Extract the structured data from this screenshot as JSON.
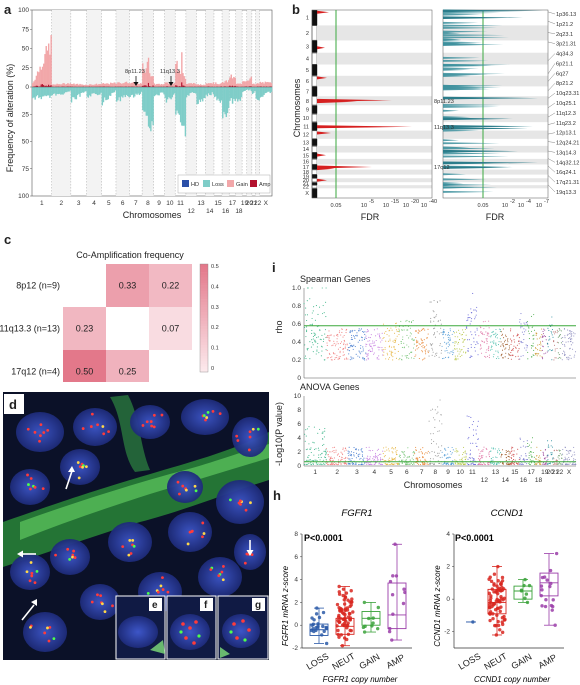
{
  "panel_a": {
    "letter": "a",
    "ylabel": "Frequency of alteration (%)",
    "xlabel": "Chromosomes",
    "yticks": [
      "100",
      "75",
      "50",
      "25",
      "0",
      "25",
      "50",
      "75",
      "100"
    ],
    "chromosomes": [
      "1",
      "2",
      "3",
      "4",
      "5",
      "6",
      "7",
      "8",
      "9",
      "10",
      "11",
      "12",
      "13",
      "14",
      "15",
      "16",
      "17",
      "18",
      "19",
      "20",
      "21",
      "22",
      "X"
    ],
    "annotations": [
      "8p11.23",
      "11q13.3"
    ],
    "legend": [
      {
        "label": "HD",
        "color": "#2b4fa8"
      },
      {
        "label": "Loss",
        "color": "#7fcdc8"
      },
      {
        "label": "Gain",
        "color": "#f2a7a9"
      },
      {
        "label": "Amp",
        "color": "#b3122e"
      }
    ]
  },
  "panel_b": {
    "letter": "b",
    "ylabel": "Chromosomes",
    "xlabel_left": "FDR",
    "xlabel_right": "FDR",
    "chromosomes": [
      "1",
      "2",
      "3",
      "4",
      "5",
      "6",
      "7",
      "8",
      "9",
      "10",
      "11",
      "12",
      "13",
      "14",
      "15",
      "16",
      "17",
      "18",
      "19",
      "20",
      "21",
      "22",
      "X"
    ],
    "xticks_left": [
      "0.05",
      "10",
      "-5",
      "10",
      "-15",
      "10",
      "-20",
      "10",
      "-40"
    ],
    "xticks_right": [
      "0.05",
      "10",
      "-2",
      "10",
      "-4",
      "10",
      "-7"
    ],
    "left_labels": [
      "8p11.23",
      "11q13.3",
      "17q12"
    ],
    "right_labels": [
      "1p36.13",
      "1p21.2",
      "2q23.1",
      "3p21.31",
      "4q34.3",
      "6p21.1",
      "6q27",
      "8p21.2",
      "10q23.31",
      "10q25.1",
      "11q12.3",
      "11q23.2",
      "12p13.1",
      "12q24.21",
      "13q14.3",
      "14q32.12",
      "16q24.1",
      "17q21.31",
      "19q13.3"
    ]
  },
  "panel_c": {
    "letter": "c",
    "title": "Co-Amplification frequency",
    "rows": [
      "8p12 (n=9)",
      "11q13.3 (n=13)",
      "17q12 (n=4)"
    ],
    "cols": [
      "8p12",
      "11q13.3",
      "17q12"
    ],
    "values": [
      [
        "",
        "0.33",
        "0.22"
      ],
      [
        "0.23",
        "",
        "0.07"
      ],
      [
        "0.50",
        "0.25",
        ""
      ]
    ],
    "scale_ticks": [
      "0.5",
      "0.4",
      "0.3",
      "0.2",
      "0.1",
      "0"
    ]
  },
  "panel_d": {
    "letter": "d",
    "insets": [
      "e",
      "f",
      "g"
    ]
  },
  "panel_i": {
    "letter": "i",
    "top_title": "Spearman Genes",
    "top_ylabel": "rho",
    "top_yticks": [
      "1.0",
      "0.8",
      "0.6",
      "0.4",
      "0.2",
      "0"
    ],
    "bottom_title": "ANOVA Genes",
    "bottom_ylabel": "-Log10(P value)",
    "bottom_yticks": [
      "10",
      "8",
      "6",
      "4",
      "2",
      "0"
    ],
    "xlabel": "Chromosomes",
    "chromosomes": [
      "1",
      "2",
      "3",
      "4",
      "5",
      "6",
      "7",
      "8",
      "9",
      "10",
      "11",
      "12",
      "13",
      "14",
      "15",
      "16",
      "17",
      "18",
      "19",
      "20",
      "21",
      "22",
      "X"
    ]
  },
  "panel_h": {
    "letter": "h",
    "left": {
      "title": "FGFR1",
      "pvalue": "P<0.0001",
      "ylabel": "FGFR1 mRNA z-score",
      "xlabel": "FGFR1 copy number",
      "yticks": [
        "8",
        "6",
        "4",
        "2",
        "0",
        "-2"
      ],
      "categories": [
        "LOSS",
        "NEUT",
        "GAIN",
        "AMP"
      ],
      "colors": [
        "#2b5aa8",
        "#d8261f",
        "#3aa23a",
        "#9a3ca8"
      ]
    },
    "right": {
      "title": "CCND1",
      "pvalue": "P<0.0001",
      "ylabel": "CCND1 mRNA z-score",
      "xlabel": "CCND1 copy number",
      "yticks": [
        "4",
        "2",
        "0",
        "-2"
      ],
      "categories": [
        "LOSS",
        "NEUT",
        "GAIN",
        "AMP"
      ],
      "colors": [
        "#2b5aa8",
        "#d8261f",
        "#3aa23a",
        "#9a3ca8"
      ]
    }
  },
  "colors": {
    "gain": "#f2a7a9",
    "amp": "#b3122e",
    "loss": "#7fcdc8",
    "hd": "#2b4fa8",
    "fdr_line": "#4caf50",
    "heat_high": "#e38591",
    "heat_low": "#fbe4e7"
  }
}
